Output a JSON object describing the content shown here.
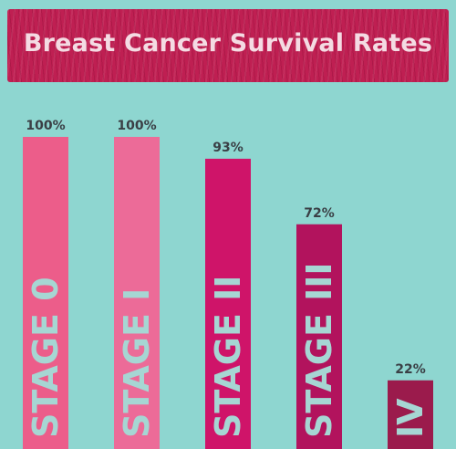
{
  "chart_data": {
    "type": "bar",
    "title": "Breast Cancer Survival Rates",
    "categories": [
      "STAGE 0",
      "STAGE I",
      "STAGE II",
      "STAGE III",
      "IV"
    ],
    "values": [
      100,
      100,
      93,
      72,
      22
    ],
    "value_labels": [
      "100%",
      "100%",
      "93%",
      "72%",
      "22%"
    ],
    "ylim": [
      0,
      100
    ],
    "grid": false,
    "legend": "none",
    "colors": [
      "#ec5d8a",
      "#ec6b98",
      "#cf1469",
      "#b2135d",
      "#9b1b4c"
    ],
    "background": "#8ed6d0",
    "banner_color": "#bf1f52"
  }
}
